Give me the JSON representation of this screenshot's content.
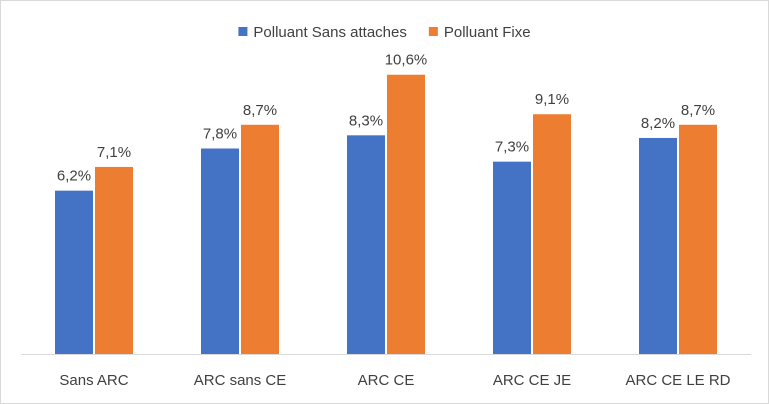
{
  "chart_data": {
    "type": "bar",
    "categories": [
      "Sans ARC",
      "ARC sans CE",
      "ARC CE",
      "ARC CE JE",
      "ARC CE LE RD"
    ],
    "series": [
      {
        "name": "Polluant Sans attaches",
        "color": "#4472c4",
        "values": [
          6.2,
          7.8,
          8.3,
          7.3,
          8.2
        ],
        "labels": [
          "6,2%",
          "7,8%",
          "8,3%",
          "7,3%",
          "8,2%"
        ]
      },
      {
        "name": "Polluant Fixe",
        "color": "#ed7d31",
        "values": [
          7.1,
          8.7,
          10.6,
          9.1,
          8.7
        ],
        "labels": [
          "7,1%",
          "8,7%",
          "10,6%",
          "9,1%",
          "8,7%"
        ]
      }
    ],
    "ylim": [
      0,
      11.5
    ],
    "grid": false,
    "legend": "top-center",
    "axis_color": "#d9d9d9"
  }
}
